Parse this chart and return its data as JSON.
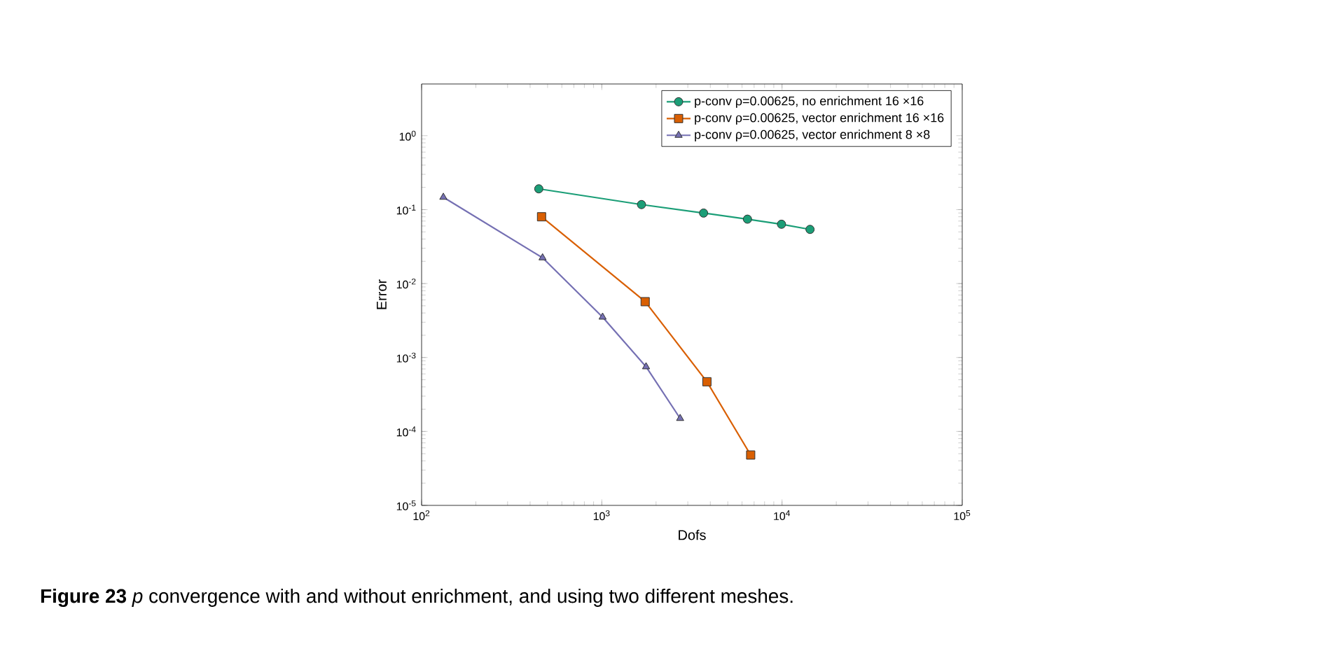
{
  "chart_data": {
    "type": "line",
    "xlabel": "Dofs",
    "ylabel": "Error",
    "log": "xy",
    "grid": false,
    "legend": "top right",
    "xlim": [
      100,
      100000
    ],
    "ylim": [
      1e-05,
      5
    ],
    "xticks": [
      {
        "value": 100,
        "label": "10$^{2}$"
      },
      {
        "value": 1000,
        "label": "10$^{3}$"
      },
      {
        "value": 10000,
        "label": "10$^{4}$"
      },
      {
        "value": 100000,
        "label": "10$^{5}$"
      }
    ],
    "yticks": [
      {
        "value": 1e-05,
        "label": "10$^{-5}$"
      },
      {
        "value": 0.0001,
        "label": "10$^{-4}$"
      },
      {
        "value": 0.001,
        "label": "10$^{-3}$"
      },
      {
        "value": 0.01,
        "label": "10$^{-2}$"
      },
      {
        "value": 0.1,
        "label": "10$^{-1}$"
      },
      {
        "value": 1,
        "label": "10$^{0}$"
      }
    ],
    "series": [
      {
        "name": "p-conv ρ=0.00625, no enrichment 16 ×16",
        "color": "#1b9e77",
        "marker": "circle",
        "x": [
          447,
          1660,
          3670,
          6430,
          9930,
          14300
        ],
        "values": [
          0.191,
          0.117,
          0.0898,
          0.0743,
          0.0634,
          0.054
        ]
      },
      {
        "name": "p-conv ρ=0.00625, vector enrichment 16 ×16",
        "color": "#d95f02",
        "marker": "square",
        "x": [
          463,
          1740,
          3830,
          6700
        ],
        "values": [
          0.08,
          0.00569,
          0.00047,
          4.8e-05
        ]
      },
      {
        "name": "p-conv ρ=0.00625, vector enrichment 8 ×8",
        "color": "#7570b3",
        "marker": "triangle",
        "x": [
          132,
          469,
          1010,
          1760,
          2720
        ],
        "values": [
          0.147,
          0.0223,
          0.00352,
          0.00075,
          0.00015
        ]
      }
    ],
    "annotations": [
      "**Figure 23** *p* convergence with and without enrichment, and using two different meshes."
    ]
  }
}
